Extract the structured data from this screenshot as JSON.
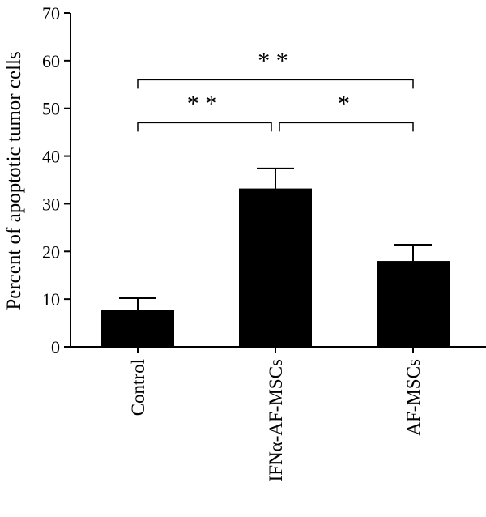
{
  "chart_data": {
    "type": "bar",
    "categories": [
      "Control",
      "IFNα-AF-MSCs",
      "AF-MSCs"
    ],
    "values": [
      7.8,
      33.2,
      18.0
    ],
    "errors": [
      2.4,
      4.2,
      3.4
    ],
    "ylabel": "Percent of apoptotic tumor cells",
    "ylim": [
      0,
      70
    ],
    "yticks": [
      0,
      10,
      20,
      30,
      40,
      50,
      60,
      70
    ],
    "bar_color": "#000000",
    "grid": false,
    "legend": "none",
    "significance": [
      {
        "from": 0,
        "to": 2,
        "label": "* *",
        "y": 56
      },
      {
        "from": 0,
        "to": 1,
        "label": "* *",
        "y": 47
      },
      {
        "from": 1,
        "to": 2,
        "label": "*",
        "y": 47
      }
    ]
  }
}
